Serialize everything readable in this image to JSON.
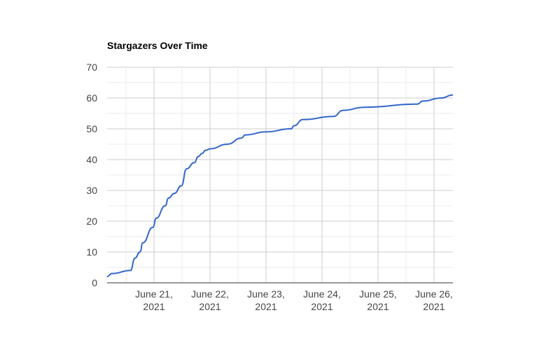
{
  "chart_data": {
    "type": "line",
    "title": "Stargazers Over Time",
    "xlabel": "",
    "ylabel": "",
    "ylim": [
      0,
      70
    ],
    "yticks": [
      0,
      10,
      20,
      30,
      40,
      50,
      60,
      70
    ],
    "xticks": [
      {
        "line1": "June 21,",
        "line2": "2021"
      },
      {
        "line1": "June 22,",
        "line2": "2021"
      },
      {
        "line1": "June 23,",
        "line2": "2021"
      },
      {
        "line1": "June 24,",
        "line2": "2021"
      },
      {
        "line1": "June 25,",
        "line2": "2021"
      },
      {
        "line1": "June 26,",
        "line2": "2021"
      }
    ],
    "grid": true,
    "legend": "none",
    "line_color": "#3366cc",
    "series": [
      {
        "name": "Stargazers",
        "x_days_from_jun21": [
          -0.84,
          -0.75,
          -0.42,
          -0.34,
          -0.25,
          -0.2,
          -0.02,
          0.04,
          0.2,
          0.26,
          0.36,
          0.49,
          0.58,
          0.72,
          0.79,
          0.86,
          0.92,
          1.0,
          1.31,
          1.56,
          1.63,
          2.0,
          2.45,
          2.5,
          2.66,
          3.2,
          3.38,
          3.75,
          4.7,
          4.8,
          5.13,
          5.34
        ],
        "values": [
          2,
          3,
          4,
          8,
          10,
          13,
          18,
          21,
          25,
          27.5,
          29,
          31.5,
          37,
          39,
          41,
          42,
          43,
          43.5,
          45,
          47,
          48,
          49,
          50,
          51,
          53,
          54,
          56,
          57,
          58,
          59,
          60,
          61
        ]
      }
    ]
  }
}
